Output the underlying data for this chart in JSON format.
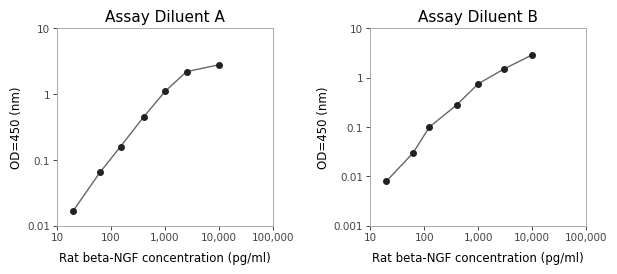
{
  "chart_a": {
    "title": "Assay Diluent A",
    "x": [
      20,
      62.5,
      150,
      400,
      1000,
      2500,
      10000
    ],
    "y": [
      0.017,
      0.065,
      0.16,
      0.45,
      1.1,
      2.2,
      2.8
    ],
    "xlim": [
      10,
      100000
    ],
    "ylim": [
      0.01,
      10
    ],
    "xticks": [
      10,
      100,
      1000,
      10000,
      100000
    ],
    "xtick_labels": [
      "10",
      "100",
      "1,000",
      "10,000",
      "100,000"
    ],
    "yticks": [
      0.01,
      0.1,
      1,
      10
    ],
    "ytick_labels": [
      "0.01",
      "0.1",
      "1",
      "10"
    ],
    "xlabel": "Rat beta-NGF concentration (pg/ml)",
    "ylabel": "OD=450 (nm)"
  },
  "chart_b": {
    "title": "Assay Diluent B",
    "x": [
      20,
      62.5,
      125,
      400,
      1000,
      3000,
      10000
    ],
    "y": [
      0.008,
      0.03,
      0.1,
      0.28,
      0.75,
      1.5,
      2.9
    ],
    "xlim": [
      10,
      100000
    ],
    "ylim": [
      0.001,
      10
    ],
    "xticks": [
      10,
      100,
      1000,
      10000,
      100000
    ],
    "xtick_labels": [
      "10",
      "100",
      "1,000",
      "10,000",
      "100,000"
    ],
    "yticks": [
      0.001,
      0.01,
      0.1,
      1,
      10
    ],
    "ytick_labels": [
      "0.001",
      "0.01",
      "0.1",
      "1",
      "10"
    ],
    "xlabel": "Rat beta-NGF concentration (pg/ml)",
    "ylabel": "OD=450 (nm)"
  },
  "line_color": "#666666",
  "marker_color": "#222222",
  "marker_size": 4,
  "line_width": 1.0,
  "bg_color": "#ffffff",
  "title_fontsize": 11,
  "label_fontsize": 8.5,
  "tick_fontsize": 7.5
}
